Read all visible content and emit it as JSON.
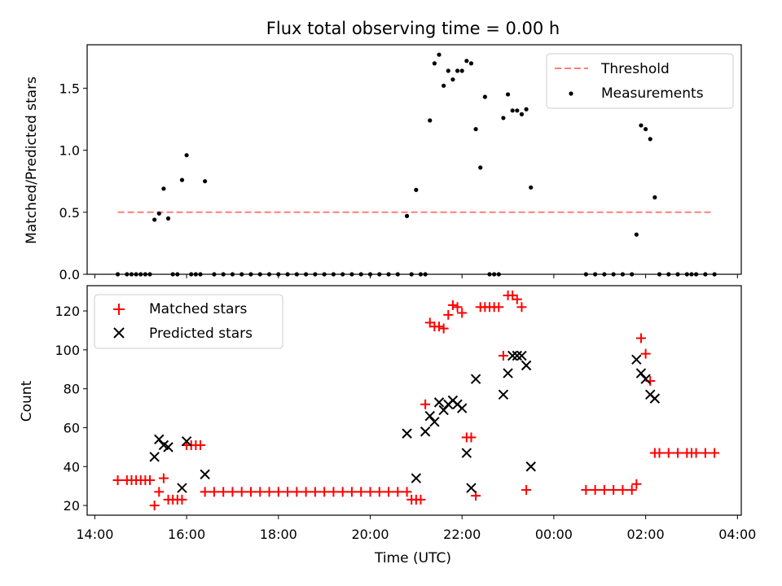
{
  "chart_data": [
    {
      "type": "scatter",
      "title": "Flux total observing time = 0.00 h",
      "ylabel": "Matched/Predicted stars",
      "xlim": [
        "13:50",
        "04:05"
      ],
      "ylim": [
        0,
        1.85
      ],
      "yticks": [
        0,
        0.5,
        1.0,
        1.5
      ],
      "ytick_labels": [
        "0.0",
        "0.5",
        "1.0",
        "1.5"
      ],
      "legend_position": "top-right",
      "threshold": {
        "name": "Threshold",
        "value": 0.5,
        "x_start": "14:30",
        "x_end": "03:25",
        "color": "#ff7f7f",
        "style": "dashed"
      },
      "measurements": {
        "name": "Measurements",
        "color": "#000000",
        "points": [
          [
            "14:30",
            0.0
          ],
          [
            "14:42",
            0.0
          ],
          [
            "14:48",
            0.0
          ],
          [
            "14:54",
            0.0
          ],
          [
            "15:00",
            0.0
          ],
          [
            "15:06",
            0.0
          ],
          [
            "15:12",
            0.0
          ],
          [
            "15:18",
            0.44
          ],
          [
            "15:24",
            0.49
          ],
          [
            "15:30",
            0.69
          ],
          [
            "15:36",
            0.45
          ],
          [
            "15:42",
            0.0
          ],
          [
            "15:48",
            0.0
          ],
          [
            "15:54",
            0.76
          ],
          [
            "16:00",
            0.96
          ],
          [
            "16:06",
            0.0
          ],
          [
            "16:12",
            0.0
          ],
          [
            "16:18",
            0.0
          ],
          [
            "16:24",
            0.75
          ],
          [
            "16:36",
            0.0
          ],
          [
            "16:48",
            0.0
          ],
          [
            "17:00",
            0.0
          ],
          [
            "17:12",
            0.0
          ],
          [
            "17:24",
            0.0
          ],
          [
            "17:36",
            0.0
          ],
          [
            "17:48",
            0.0
          ],
          [
            "18:00",
            0.0
          ],
          [
            "18:12",
            0.0
          ],
          [
            "18:24",
            0.0
          ],
          [
            "18:36",
            0.0
          ],
          [
            "18:48",
            0.0
          ],
          [
            "19:00",
            0.0
          ],
          [
            "19:12",
            0.0
          ],
          [
            "19:24",
            0.0
          ],
          [
            "19:36",
            0.0
          ],
          [
            "19:48",
            0.0
          ],
          [
            "20:00",
            0.0
          ],
          [
            "20:12",
            0.0
          ],
          [
            "20:24",
            0.0
          ],
          [
            "20:36",
            0.0
          ],
          [
            "20:48",
            0.47
          ],
          [
            "20:54",
            0.0
          ],
          [
            "21:00",
            0.68
          ],
          [
            "21:06",
            0.0
          ],
          [
            "21:12",
            0.0
          ],
          [
            "21:18",
            1.24
          ],
          [
            "21:24",
            1.7
          ],
          [
            "21:30",
            1.77
          ],
          [
            "21:36",
            1.52
          ],
          [
            "21:42",
            1.64
          ],
          [
            "21:48",
            1.57
          ],
          [
            "21:54",
            1.64
          ],
          [
            "22:00",
            1.64
          ],
          [
            "22:06",
            1.72
          ],
          [
            "22:12",
            1.7
          ],
          [
            "22:18",
            1.17
          ],
          [
            "22:24",
            0.86
          ],
          [
            "22:30",
            1.43
          ],
          [
            "22:36",
            0.0
          ],
          [
            "22:42",
            0.0
          ],
          [
            "22:48",
            0.0
          ],
          [
            "22:54",
            1.26
          ],
          [
            "23:00",
            1.45
          ],
          [
            "23:06",
            1.32
          ],
          [
            "23:12",
            1.32
          ],
          [
            "23:18",
            1.29
          ],
          [
            "23:24",
            1.33
          ],
          [
            "23:30",
            0.7
          ],
          [
            "00:42",
            0.0
          ],
          [
            "00:54",
            0.0
          ],
          [
            "01:06",
            0.0
          ],
          [
            "01:18",
            0.0
          ],
          [
            "01:30",
            0.0
          ],
          [
            "01:42",
            0.0
          ],
          [
            "01:48",
            0.32
          ],
          [
            "01:54",
            1.2
          ],
          [
            "02:00",
            1.17
          ],
          [
            "02:06",
            1.09
          ],
          [
            "02:12",
            0.62
          ],
          [
            "02:18",
            0.0
          ],
          [
            "02:30",
            0.0
          ],
          [
            "02:42",
            0.0
          ],
          [
            "02:54",
            0.0
          ],
          [
            "03:00",
            0.0
          ],
          [
            "03:06",
            0.0
          ],
          [
            "03:18",
            0.0
          ],
          [
            "03:30",
            0.0
          ]
        ]
      }
    },
    {
      "type": "scatter",
      "xlabel": "Time (UTC)",
      "ylabel": "Count",
      "xlim": [
        "13:50",
        "04:05"
      ],
      "ylim": [
        15,
        133
      ],
      "xticks": [
        "14:00",
        "16:00",
        "18:00",
        "20:00",
        "22:00",
        "00:00",
        "02:00",
        "04:00"
      ],
      "yticks": [
        20,
        40,
        60,
        80,
        100,
        120
      ],
      "legend_position": "top-left",
      "series": [
        {
          "name": "Matched stars",
          "marker": "+",
          "color": "#ff0000",
          "points": [
            [
              "14:30",
              33
            ],
            [
              "14:42",
              33
            ],
            [
              "14:48",
              33
            ],
            [
              "14:54",
              33
            ],
            [
              "15:00",
              33
            ],
            [
              "15:06",
              33
            ],
            [
              "15:12",
              33
            ],
            [
              "15:18",
              20
            ],
            [
              "15:24",
              27
            ],
            [
              "15:30",
              34
            ],
            [
              "15:36",
              23
            ],
            [
              "15:42",
              23
            ],
            [
              "15:48",
              23
            ],
            [
              "15:54",
              23
            ],
            [
              "16:00",
              51
            ],
            [
              "16:06",
              51
            ],
            [
              "16:12",
              51
            ],
            [
              "16:18",
              51
            ],
            [
              "16:24",
              27
            ],
            [
              "16:36",
              27
            ],
            [
              "16:48",
              27
            ],
            [
              "17:00",
              27
            ],
            [
              "17:12",
              27
            ],
            [
              "17:24",
              27
            ],
            [
              "17:36",
              27
            ],
            [
              "17:48",
              27
            ],
            [
              "18:00",
              27
            ],
            [
              "18:12",
              27
            ],
            [
              "18:24",
              27
            ],
            [
              "18:36",
              27
            ],
            [
              "18:48",
              27
            ],
            [
              "19:00",
              27
            ],
            [
              "19:12",
              27
            ],
            [
              "19:24",
              27
            ],
            [
              "19:36",
              27
            ],
            [
              "19:48",
              27
            ],
            [
              "20:00",
              27
            ],
            [
              "20:12",
              27
            ],
            [
              "20:24",
              27
            ],
            [
              "20:36",
              27
            ],
            [
              "20:48",
              27
            ],
            [
              "20:54",
              23
            ],
            [
              "21:00",
              23
            ],
            [
              "21:06",
              23
            ],
            [
              "21:12",
              72
            ],
            [
              "21:18",
              114
            ],
            [
              "21:24",
              112
            ],
            [
              "21:30",
              112
            ],
            [
              "21:36",
              111
            ],
            [
              "21:42",
              118
            ],
            [
              "21:48",
              123
            ],
            [
              "21:54",
              122
            ],
            [
              "22:00",
              119
            ],
            [
              "22:06",
              55
            ],
            [
              "22:12",
              55
            ],
            [
              "22:18",
              25
            ],
            [
              "22:24",
              122
            ],
            [
              "22:30",
              122
            ],
            [
              "22:36",
              122
            ],
            [
              "22:42",
              122
            ],
            [
              "22:48",
              122
            ],
            [
              "22:54",
              97
            ],
            [
              "23:00",
              128
            ],
            [
              "23:06",
              128
            ],
            [
              "23:12",
              126
            ],
            [
              "23:18",
              122
            ],
            [
              "23:24",
              28
            ],
            [
              "00:42",
              28
            ],
            [
              "00:54",
              28
            ],
            [
              "01:06",
              28
            ],
            [
              "01:18",
              28
            ],
            [
              "01:30",
              28
            ],
            [
              "01:42",
              28
            ],
            [
              "01:48",
              31
            ],
            [
              "01:54",
              106
            ],
            [
              "02:00",
              98
            ],
            [
              "02:06",
              84
            ],
            [
              "02:12",
              47
            ],
            [
              "02:18",
              47
            ],
            [
              "02:30",
              47
            ],
            [
              "02:42",
              47
            ],
            [
              "02:54",
              47
            ],
            [
              "03:00",
              47
            ],
            [
              "03:06",
              47
            ],
            [
              "03:18",
              47
            ],
            [
              "03:30",
              47
            ]
          ]
        },
        {
          "name": "Predicted stars",
          "marker": "x",
          "color": "#000000",
          "points": [
            [
              "15:18",
              45
            ],
            [
              "15:24",
              54
            ],
            [
              "15:30",
              51
            ],
            [
              "15:36",
              50
            ],
            [
              "15:54",
              29
            ],
            [
              "16:00",
              53
            ],
            [
              "16:24",
              36
            ],
            [
              "20:48",
              57
            ],
            [
              "21:00",
              34
            ],
            [
              "21:12",
              58
            ],
            [
              "21:18",
              66
            ],
            [
              "21:24",
              63
            ],
            [
              "21:30",
              73
            ],
            [
              "21:36",
              69
            ],
            [
              "21:42",
              72
            ],
            [
              "21:48",
              74
            ],
            [
              "21:54",
              72
            ],
            [
              "22:00",
              70
            ],
            [
              "22:06",
              47
            ],
            [
              "22:12",
              29
            ],
            [
              "22:18",
              85
            ],
            [
              "22:54",
              77
            ],
            [
              "23:00",
              88
            ],
            [
              "23:06",
              97
            ],
            [
              "23:12",
              97
            ],
            [
              "23:18",
              97
            ],
            [
              "23:24",
              92
            ],
            [
              "23:30",
              40
            ],
            [
              "01:48",
              95
            ],
            [
              "01:54",
              88
            ],
            [
              "02:00",
              85
            ],
            [
              "02:06",
              77
            ],
            [
              "02:12",
              75
            ]
          ]
        }
      ]
    }
  ]
}
